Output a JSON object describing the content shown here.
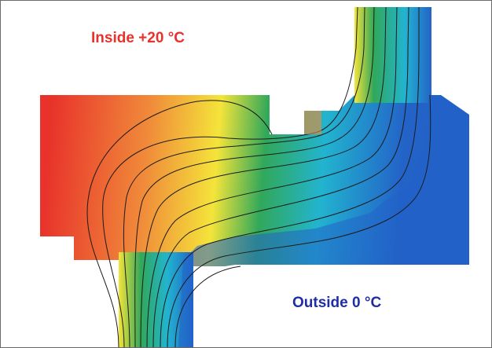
{
  "labels": {
    "inside": "Inside +20 °C",
    "outside": "Outside 0 °C"
  },
  "colors": {
    "warm": "#e8322b",
    "orange": "#f08a3a",
    "yellow": "#f4e43a",
    "green": "#31a85a",
    "cyan": "#22b4cf",
    "cold": "#2363c8",
    "isotherm": "#1b1b1b",
    "frame": "#6a6a6a",
    "inside_text": "#e8322b",
    "outside_text": "#1f2ea8"
  },
  "isotherms": {
    "count": 10,
    "color": "isotherm"
  }
}
